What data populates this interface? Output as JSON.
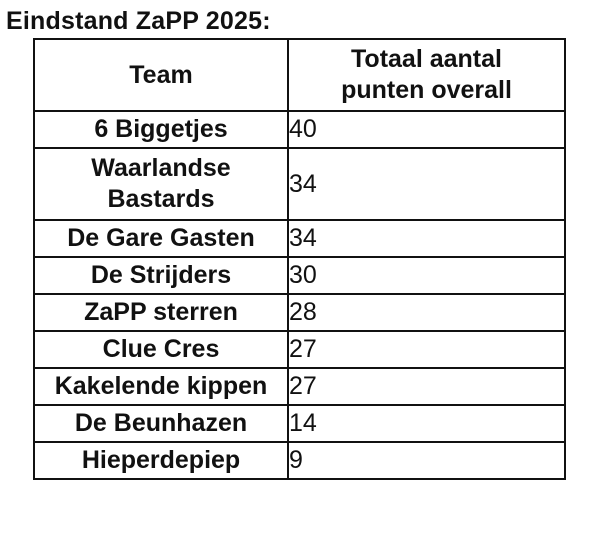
{
  "title": "Eindstand ZaPP 2025:",
  "table": {
    "headers": {
      "team": "Team",
      "points_line1": "Totaal aantal",
      "points_line2": "punten overall"
    },
    "rows": [
      {
        "team_line1": "6 Biggetjes",
        "team_line2": "",
        "points": "40"
      },
      {
        "team_line1": "Waarlandse",
        "team_line2": "Bastards",
        "points": "34"
      },
      {
        "team_line1": "De Gare Gasten",
        "team_line2": "",
        "points": "34"
      },
      {
        "team_line1": "De Strijders",
        "team_line2": "",
        "points": "30"
      },
      {
        "team_line1": "ZaPP sterren",
        "team_line2": "",
        "points": "28"
      },
      {
        "team_line1": "Clue Cres",
        "team_line2": "",
        "points": "27"
      },
      {
        "team_line1": "Kakelende kippen",
        "team_line2": "",
        "points": "27"
      },
      {
        "team_line1": "De Beunhazen",
        "team_line2": "",
        "points": "14"
      },
      {
        "team_line1": "Hieperdepiep",
        "team_line2": "",
        "points": "9"
      }
    ]
  }
}
